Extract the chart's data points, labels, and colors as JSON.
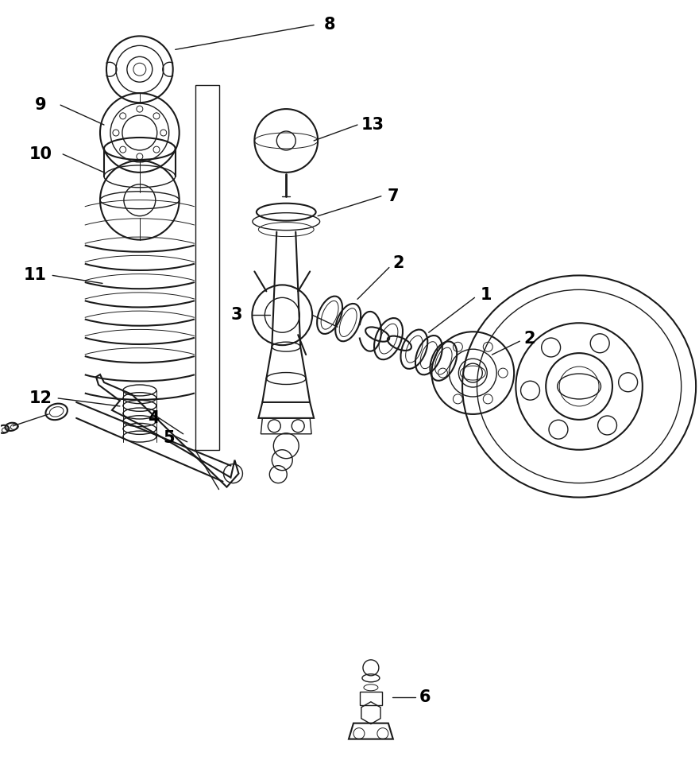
{
  "background_color": "#ffffff",
  "line_color": "#1a1a1a",
  "figsize": [
    8.8,
    9.66
  ],
  "dpi": 100,
  "title_color": "#000000"
}
